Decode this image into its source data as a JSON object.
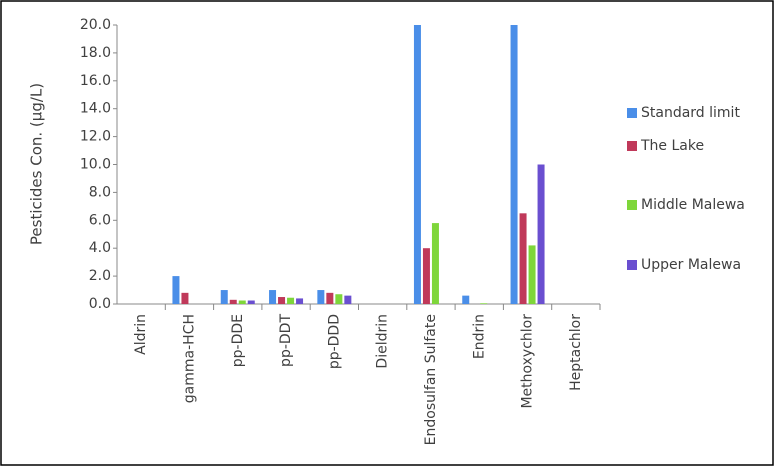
{
  "chart_data": {
    "type": "bar",
    "y_label": "Pesticides Con. (µg/L)",
    "categories": [
      "Aldrin",
      "gamma-HCH",
      "pp-DDE",
      "pp-DDT",
      "pp-DDD",
      "Dieldrin",
      "Endosulfan Sulfate",
      "Endrin",
      "Methoxychlor",
      "Heptachlor"
    ],
    "series": [
      {
        "name": "Standard limit",
        "color": "#4a8ee8",
        "values": [
          0,
          2.0,
          1.0,
          1.0,
          1.0,
          0,
          20.0,
          0.6,
          20.0,
          0
        ]
      },
      {
        "name": "The Lake",
        "color": "#c0395a",
        "values": [
          0,
          0.8,
          0.3,
          0.5,
          0.8,
          0,
          4.0,
          0,
          6.5,
          0
        ]
      },
      {
        "name": "Middle Malewa",
        "color": "#7ed63a",
        "values": [
          0,
          0,
          0.25,
          0.45,
          0.7,
          0,
          5.8,
          0.05,
          4.2,
          0
        ]
      },
      {
        "name": "Upper Malewa",
        "color": "#6a4fd0",
        "values": [
          0,
          0,
          0.25,
          0.4,
          0.6,
          0,
          0,
          0,
          10.0,
          0
        ]
      }
    ],
    "ylim": [
      0,
      20
    ],
    "yticks": [
      {
        "value": 0,
        "label": "0.0"
      },
      {
        "value": 2,
        "label": "2.0"
      },
      {
        "value": 4,
        "label": "4.0"
      },
      {
        "value": 6,
        "label": "6.0"
      },
      {
        "value": 8,
        "label": "8.0"
      },
      {
        "value": 10,
        "label": "10.0"
      },
      {
        "value": 12,
        "label": "12.0"
      },
      {
        "value": 14,
        "label": "14.0"
      },
      {
        "value": 16,
        "label": "16.0"
      },
      {
        "value": 18,
        "label": "18.0"
      },
      {
        "value": 20,
        "label": "20.0"
      }
    ],
    "legend": "right"
  }
}
